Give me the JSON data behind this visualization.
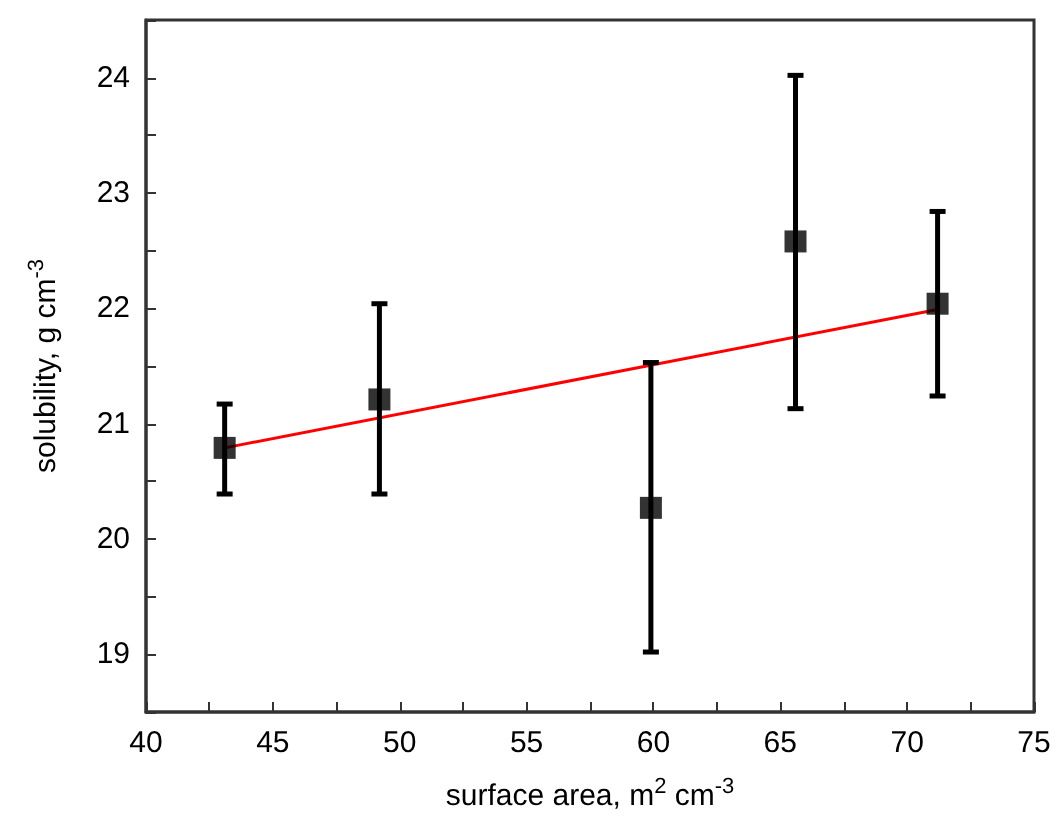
{
  "chart_data": {
    "type": "scatter",
    "xlabel": "surface area, m$^{2}$ cm$^{-3}$",
    "ylabel": "solubility, g cm$^{-3}$",
    "x": [
      43.1,
      49.2,
      59.9,
      65.6,
      71.2
    ],
    "series": [
      {
        "color": "#000000",
        "marker": "square",
        "values": [
          20.79,
          21.21,
          20.27,
          22.58,
          22.04
        ],
        "errors": [
          [
            20.39,
            21.17
          ],
          [
            20.39,
            22.04
          ],
          [
            19.02,
            21.53
          ],
          [
            21.13,
            24.02
          ],
          [
            21.24,
            22.84
          ]
        ]
      },
      {
        "type": "line",
        "color": "#ff0000",
        "marker": "none",
        "x": [
          43.1,
          71.2
        ],
        "values": [
          20.79,
          21.99
        ]
      }
    ],
    "xlim": [
      40,
      75
    ],
    "ylim": [
      18.5,
      24.5
    ],
    "xticks": [
      40,
      {
        "value": 42.5,
        "label": null
      },
      45,
      {
        "value": 47.5,
        "label": null
      },
      50,
      {
        "value": 52.5,
        "label": null
      },
      55,
      {
        "value": 57.5,
        "label": null
      },
      60,
      {
        "value": 62.5,
        "label": null
      },
      65,
      {
        "value": 67.5,
        "label": null
      },
      70,
      {
        "value": 72.5,
        "label": null
      },
      75
    ],
    "yticks": [
      {
        "value": 18.5,
        "label": null
      },
      19,
      {
        "value": 19.5,
        "label": null
      },
      20,
      {
        "value": 20.5,
        "label": null
      },
      21,
      {
        "value": 21.5,
        "label": null
      },
      22,
      {
        "value": 22.5,
        "label": null
      },
      23,
      {
        "value": 23.5,
        "label": null
      },
      24,
      {
        "value": 24.5,
        "label": null
      }
    ],
    "grid": false
  }
}
